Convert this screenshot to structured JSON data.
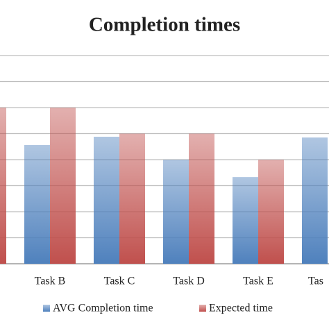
{
  "chart_data": {
    "type": "bar",
    "title": "Completion times",
    "categories": [
      null,
      "Task B",
      "Task C",
      "Task D",
      "Task E",
      "Tas"
    ],
    "series": [
      {
        "name": "AVG Completion time",
        "color": "#4f81bd",
        "values": [
          null,
          4.56,
          4.88,
          4.0,
          3.33,
          4.85
        ]
      },
      {
        "name": "Expected time",
        "color": "#c0504d",
        "values": [
          6,
          6,
          5,
          5,
          4,
          null
        ]
      }
    ],
    "ylim": [
      0,
      8
    ],
    "yticks": [
      0,
      1,
      2,
      3,
      4,
      5,
      6,
      7,
      8
    ],
    "grid": true
  }
}
